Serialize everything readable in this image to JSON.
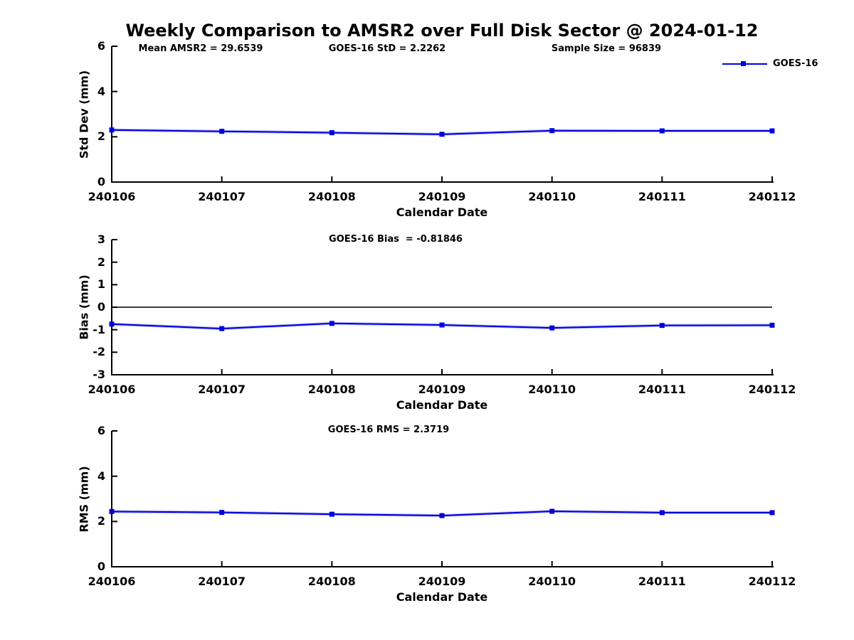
{
  "title": "Weekly Comparison to AMSR2 over Full Disk Sector @ 2024-01-12",
  "legend": {
    "label": "GOES-16",
    "position": "top-right",
    "color": "#0000dd"
  },
  "chart_data": [
    {
      "type": "line",
      "name": "std-dev",
      "xlabel": "Calendar Date",
      "ylabel": "Std Dev (mm)",
      "categories": [
        "240106",
        "240107",
        "240108",
        "240109",
        "240110",
        "240111",
        "240112"
      ],
      "ylim": [
        0,
        6
      ],
      "yticks": [
        0,
        2,
        4,
        6
      ],
      "grid": false,
      "zero_line": false,
      "annotations": [
        "Mean AMSR2 = 29.6539",
        "GOES-16 StD = 2.2262",
        "Sample Size = 96839"
      ],
      "series": [
        {
          "name": "GOES-16",
          "color": "#0000dd",
          "marker": "square",
          "values": [
            2.3,
            2.24,
            2.18,
            2.11,
            2.27,
            2.26,
            2.26
          ]
        }
      ]
    },
    {
      "type": "line",
      "name": "bias",
      "xlabel": "Calendar Date",
      "ylabel": "Bias (mm)",
      "categories": [
        "240106",
        "240107",
        "240108",
        "240109",
        "240110",
        "240111",
        "240112"
      ],
      "ylim": [
        -3,
        3
      ],
      "yticks": [
        -3,
        -2,
        -1,
        0,
        1,
        2,
        3
      ],
      "grid": false,
      "zero_line": true,
      "annotations": [
        "GOES-16 Bias  = -0.81846"
      ],
      "series": [
        {
          "name": "GOES-16",
          "color": "#0000dd",
          "marker": "square",
          "values": [
            -0.75,
            -0.95,
            -0.72,
            -0.79,
            -0.92,
            -0.81,
            -0.8
          ]
        }
      ]
    },
    {
      "type": "line",
      "name": "rms",
      "xlabel": "Calendar Date",
      "ylabel": "RMS (mm)",
      "categories": [
        "240106",
        "240107",
        "240108",
        "240109",
        "240110",
        "240111",
        "240112"
      ],
      "ylim": [
        0,
        6
      ],
      "yticks": [
        0,
        2,
        4,
        6
      ],
      "grid": false,
      "zero_line": false,
      "annotations": [
        "GOES-16 RMS = 2.3719"
      ],
      "series": [
        {
          "name": "GOES-16",
          "color": "#0000dd",
          "marker": "square",
          "values": [
            2.44,
            2.4,
            2.32,
            2.26,
            2.45,
            2.39,
            2.39
          ]
        }
      ]
    }
  ]
}
